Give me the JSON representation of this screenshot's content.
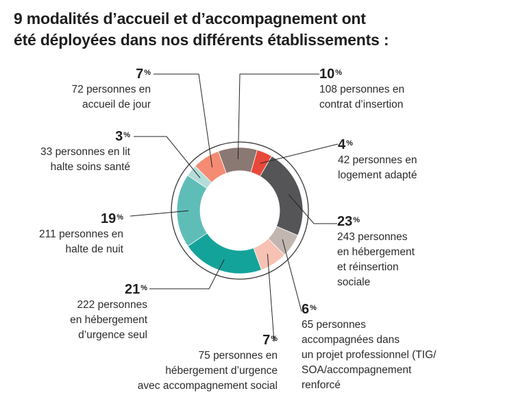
{
  "title": {
    "line1": "9 modalités d’accueil et d’accompagnement ont",
    "line2": "été déployées dans nos différents établissements :"
  },
  "chart_data": {
    "type": "pie",
    "title": "9 modalités d’accueil et d’accompagnement ont été déployées dans nos différents établissements :",
    "unit": "%",
    "slices": [
      {
        "pct": 10,
        "pct_label": "10",
        "count_text": "108 personnes en contrat d’insertion",
        "desc_lines": [
          "108 personnes en",
          "contrat d’insertion"
        ],
        "color": "#8a7873"
      },
      {
        "pct": 4,
        "pct_label": "4",
        "count_text": "42 personnes en logement adapté",
        "desc_lines": [
          "42 personnes en",
          "logement adapté"
        ],
        "color": "#e8483a"
      },
      {
        "pct": 23,
        "pct_label": "23",
        "count_text": "243 personnes en hébergement et réinsertion sociale",
        "desc_lines": [
          "243 personnes",
          "en hébergement",
          "et réinsertion",
          "sociale"
        ],
        "color": "#555557"
      },
      {
        "pct": 6,
        "pct_label": "6",
        "count_text": "65 personnes accompagnées dans un projet professionnel (TIG/SOA/accompagnement renforcé",
        "desc_lines": [
          "65 personnes",
          "accompagnées dans",
          "un projet professionnel (TIG/",
          "SOA/accompagnement",
          "renforcé"
        ],
        "color": "#c2b6b1"
      },
      {
        "pct": 7,
        "pct_label": "7",
        "count_text": "75 personnes en hébergement d’urgence avec accompagnement social",
        "desc_lines": [
          "75 personnes en",
          "hébergement d’urgence",
          "avec accompagnement social"
        ],
        "color": "#f7c2b3"
      },
      {
        "pct": 21,
        "pct_label": "21",
        "count_text": "222 personnes en hébergement d’urgence seul",
        "desc_lines": [
          "222 personnes",
          "en hébergement",
          "d’urgence seul"
        ],
        "color": "#14a39a"
      },
      {
        "pct": 19,
        "pct_label": "19",
        "count_text": "211 personnes en halte de nuit",
        "desc_lines": [
          "211 personnes en",
          "halte de nuit"
        ],
        "color": "#5fbdb8"
      },
      {
        "pct": 3,
        "pct_label": "3",
        "count_text": "33 personnes en lit halte soins santé",
        "desc_lines": [
          "33 personnes en lit",
          "halte soins santé"
        ],
        "color": "#b4dcd8"
      },
      {
        "pct": 7,
        "pct_label": "7",
        "count_text": "72 personnes en accueil de jour",
        "desc_lines": [
          "72 personnes en",
          "accueil de jour"
        ],
        "color": "#f48b72"
      }
    ]
  }
}
